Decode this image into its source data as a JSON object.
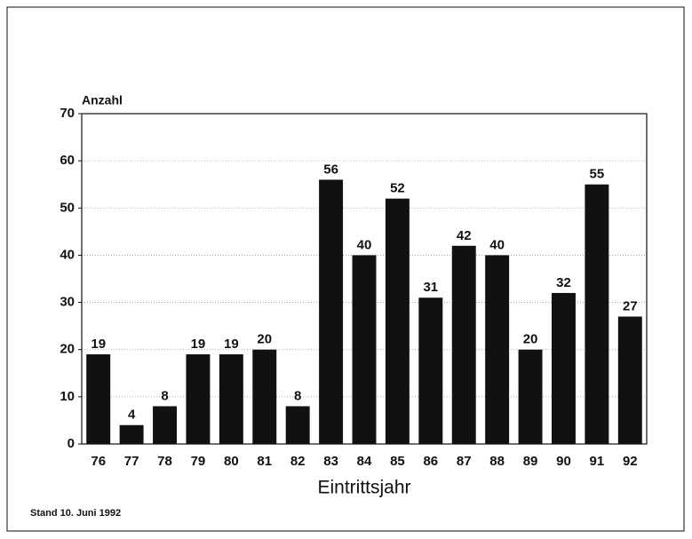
{
  "chart_data": {
    "type": "bar",
    "y_label": "Anzahl",
    "x_label": "Eintrittsjahr",
    "footnote": "Stand 10. Juni 1992",
    "categories": [
      "76",
      "77",
      "78",
      "79",
      "80",
      "81",
      "82",
      "83",
      "84",
      "85",
      "86",
      "87",
      "88",
      "89",
      "90",
      "91",
      "92"
    ],
    "values": [
      19,
      4,
      8,
      19,
      19,
      20,
      8,
      56,
      40,
      52,
      31,
      42,
      40,
      20,
      32,
      55,
      27
    ],
    "color": "#111111",
    "ylim": [
      0,
      70
    ],
    "yticks": [
      0,
      10,
      20,
      30,
      40,
      50,
      60,
      70
    ],
    "grid": true
  }
}
